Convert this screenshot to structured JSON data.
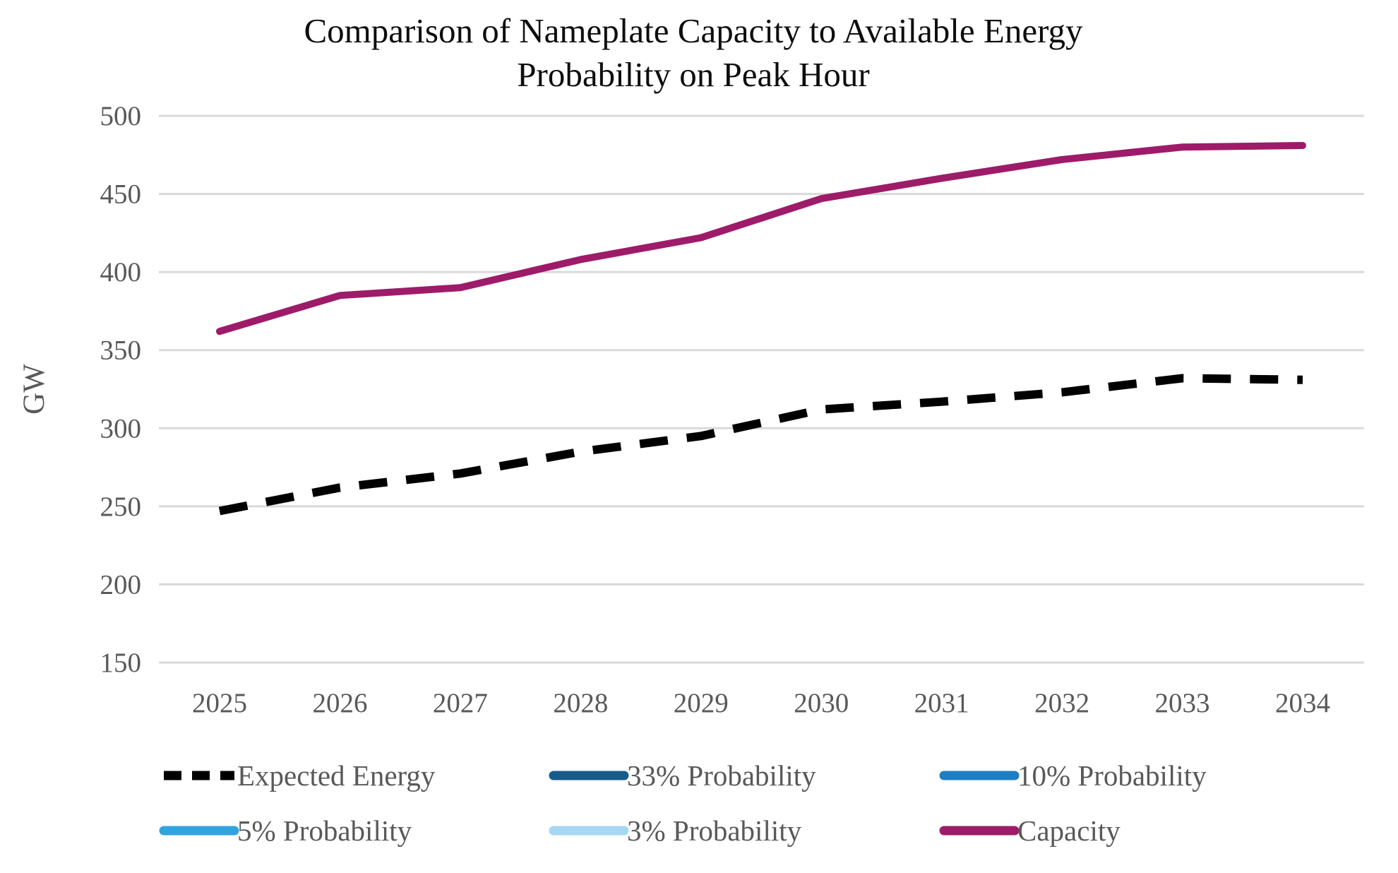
{
  "title": {
    "line1": "Comparison of Nameplate Capacity to Available Energy",
    "line2": "Probability on Peak Hour"
  },
  "y_axis": {
    "label": "GW",
    "ticks": [
      500,
      450,
      400,
      350,
      300,
      250,
      200,
      150
    ]
  },
  "x_axis": {
    "ticks": [
      "2025",
      "2026",
      "2027",
      "2028",
      "2029",
      "2030",
      "2031",
      "2032",
      "2033",
      "2034"
    ]
  },
  "legend": [
    {
      "label": "Expected Energy",
      "color": "#000000",
      "dashed": true
    },
    {
      "label": "33% Probability",
      "color": "#175C8C",
      "dashed": false
    },
    {
      "label": "10% Probability",
      "color": "#1F7EC2",
      "dashed": false
    },
    {
      "label": "5% Probability",
      "color": "#30A4DF",
      "dashed": false
    },
    {
      "label": "3% Probability",
      "color": "#A6D7F4",
      "dashed": false
    },
    {
      "label": "Capacity",
      "color": "#9E1B69",
      "dashed": false
    }
  ],
  "colors": {
    "grid": "#D9D9D9",
    "axis_text": "#595959",
    "title_text": "#0d0d0d",
    "capacity": "#9E1B69",
    "expected_energy": "#000000"
  },
  "chart_data": {
    "type": "line",
    "title": "Comparison of Nameplate Capacity to Available Energy Probability on Peak Hour",
    "xlabel": "",
    "ylabel": "GW",
    "ylim": [
      150,
      500
    ],
    "ytick_step": 50,
    "grid": true,
    "legend_position": "bottom",
    "x": [
      2025,
      2026,
      2027,
      2028,
      2029,
      2030,
      2031,
      2032,
      2033,
      2034
    ],
    "series": [
      {
        "name": "Expected Energy",
        "color": "#000000",
        "dashed": true,
        "values": [
          247,
          262,
          271,
          285,
          295,
          312,
          317,
          323,
          332,
          331
        ]
      },
      {
        "name": "Capacity",
        "color": "#9E1B69",
        "dashed": false,
        "values": [
          362,
          385,
          390,
          408,
          422,
          447,
          460,
          472,
          480,
          481
        ]
      }
    ],
    "legend_only_series": [
      "33% Probability",
      "10% Probability",
      "5% Probability",
      "3% Probability"
    ]
  }
}
